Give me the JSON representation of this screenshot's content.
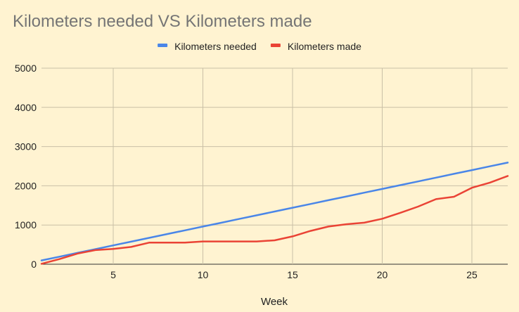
{
  "chart_data": {
    "type": "line",
    "title": "Kilometers needed VS Kilometers made",
    "xlabel": "Week",
    "ylabel": "",
    "xlim": [
      1,
      27
    ],
    "ylim": [
      0,
      5000
    ],
    "x_ticks": [
      5,
      10,
      15,
      20,
      25
    ],
    "y_ticks": [
      0,
      1000,
      2000,
      3000,
      4000,
      5000
    ],
    "grid": true,
    "legend_position": "top",
    "x": [
      1,
      2,
      3,
      4,
      5,
      6,
      7,
      8,
      9,
      10,
      11,
      12,
      13,
      14,
      15,
      16,
      17,
      18,
      19,
      20,
      21,
      22,
      23,
      24,
      25,
      26,
      27
    ],
    "series": [
      {
        "name": "Kilometers needed",
        "color": "#4a86e8",
        "values": [
          96,
          192,
          288,
          384,
          480,
          576,
          672,
          768,
          864,
          960,
          1056,
          1152,
          1248,
          1344,
          1440,
          1536,
          1632,
          1728,
          1824,
          1920,
          2016,
          2112,
          2208,
          2304,
          2400,
          2496,
          2592
        ]
      },
      {
        "name": "Kilometers made",
        "color": "#ea4335",
        "values": [
          10,
          130,
          270,
          360,
          390,
          440,
          550,
          550,
          550,
          580,
          580,
          580,
          580,
          610,
          710,
          850,
          960,
          1020,
          1060,
          1160,
          1310,
          1470,
          1660,
          1720,
          1950,
          2080,
          2250
        ]
      }
    ]
  }
}
